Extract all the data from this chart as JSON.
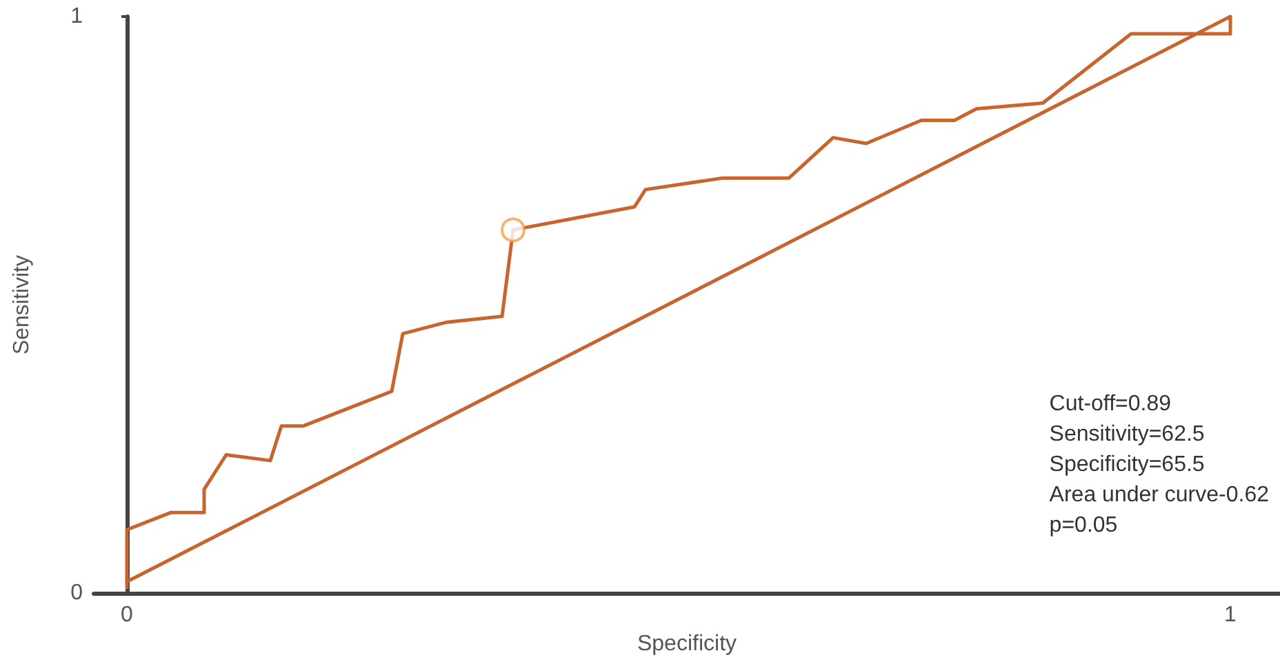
{
  "chart_data": {
    "type": "line",
    "xlabel": "Specificity",
    "ylabel": "Sensitivity",
    "xlim": [
      -0.03,
      1.045
    ],
    "ylim": [
      0,
      1
    ],
    "xticks": [
      0,
      1
    ],
    "yticks": [
      0,
      1
    ],
    "grid": false,
    "marker": "none",
    "line_style": "solid",
    "series": [
      {
        "color": "#c8642d",
        "x": [
          0,
          0,
          0.04,
          0.07,
          0.07,
          0.09,
          0.13,
          0.14,
          0.16,
          0.24,
          0.25,
          0.29,
          0.34,
          0.35,
          0.46,
          0.47,
          0.54,
          0.6,
          0.64,
          0.67,
          0.72,
          0.75,
          0.77,
          0.83,
          0.91,
          1,
          1
        ],
        "values": [
          0.01,
          0.11,
          0.14,
          0.14,
          0.18,
          0.24,
          0.23,
          0.29,
          0.29,
          0.35,
          0.45,
          0.47,
          0.48,
          0.63,
          0.67,
          0.7,
          0.72,
          0.72,
          0.79,
          0.78,
          0.82,
          0.82,
          0.84,
          0.85,
          0.97,
          0.97,
          1
        ]
      },
      {
        "color": "#c8642d",
        "x": [
          0,
          1
        ],
        "values": [
          0.02,
          1
        ]
      },
      {
        "type": "scatter",
        "marker": "circle",
        "color": "#f5a04a",
        "x": [
          0.35
        ],
        "values": [
          0.63
        ]
      }
    ],
    "annotations": [
      "Cut-off=0.89",
      "Sensitivity=62.5",
      "Specificity=65.5",
      "Area under curve-0.62",
      "p=0.05"
    ]
  }
}
